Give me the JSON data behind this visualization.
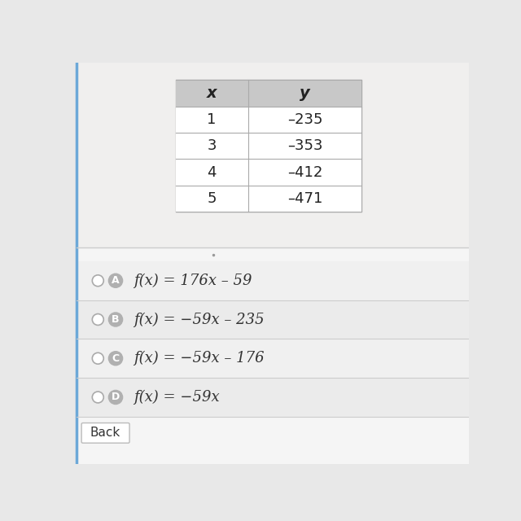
{
  "table_headers": [
    "x",
    "y"
  ],
  "table_data": [
    [
      "1",
      "–235"
    ],
    [
      "3",
      "–353"
    ],
    [
      "4",
      "–412"
    ],
    [
      "5",
      "–471"
    ]
  ],
  "options": [
    {
      "label": "A",
      "text_plain": "f(x) = 176x – 59",
      "selected": false
    },
    {
      "label": "B",
      "text_plain": "f(x) = −59x – 235",
      "selected": false
    },
    {
      "label": "C",
      "text_plain": "f(x) = −59x – 176",
      "selected": false
    },
    {
      "label": "D",
      "text_plain": "f(x) = −59x",
      "selected": false
    }
  ],
  "bg_color": "#e8e8e8",
  "upper_panel_color": "#f0efee",
  "lower_panel_color": "#f5f5f5",
  "table_header_bg": "#c8c8c8",
  "table_cell_bg_light": "#ffffff",
  "table_cell_bg_dark": "#f8f7f7",
  "table_border_color": "#aaaaaa",
  "option_badge_color": "#b0b0b0",
  "option_text_color": "#333333",
  "radio_edge_color": "#aaaaaa",
  "back_button_text": "Back",
  "left_bar_color": "#6ca8d8",
  "sep_line_color": "#cccccc"
}
